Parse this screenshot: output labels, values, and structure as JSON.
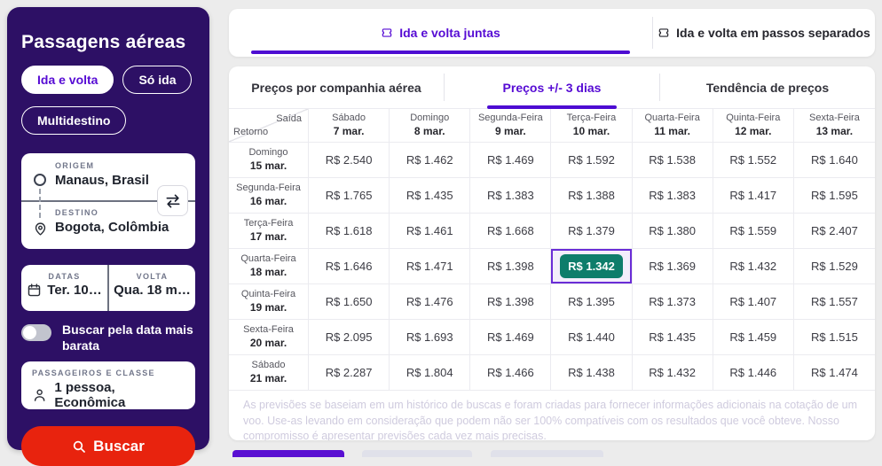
{
  "colors": {
    "accent_purple": "#560bd4",
    "sidebar_bg": "#2d1065",
    "search_button_red": "#e8230e",
    "best_price_green": "#0e7d6b",
    "highlight_border": "#6a2cd6"
  },
  "sidebar": {
    "title": "Passagens aéreas",
    "trip_types": [
      {
        "label": "Ida e volta",
        "active": true
      },
      {
        "label": "Só ida",
        "active": false
      },
      {
        "label": "Multidestino",
        "active": false
      }
    ],
    "origin": {
      "label": "ORIGEM",
      "value": "Manaus, Brasil"
    },
    "destination": {
      "label": "DESTINO",
      "value": "Bogota, Colômbia"
    },
    "dates": {
      "label": "DATAS",
      "value": "Ter. 10…"
    },
    "return": {
      "label": "VOLTA",
      "value": "Qua. 18 m…"
    },
    "cheapest_toggle_label": "Buscar pela data mais barata",
    "passengers": {
      "label": "PASSAGEIROS E CLASSE",
      "value": "1 pessoa, Econômica"
    },
    "search_button": "Buscar"
  },
  "main": {
    "mode_tabs": [
      {
        "label": "Ida e volta juntas",
        "active": true
      },
      {
        "label": "Ida e volta em passos separados",
        "active": false
      }
    ],
    "view_tabs": [
      {
        "label": "Preços por companhia aérea",
        "active": false
      },
      {
        "label": "Preços +/- 3 dias",
        "active": true
      },
      {
        "label": "Tendência de preços",
        "active": false
      }
    ],
    "disclaimer": "As previsões se baseiam em um histórico de buscas e foram criadas para fornecer informações adicionais na cotação de um voo. Use-as levando em consideração que podem não ser 100% compatíveis com os resultados que você obteve. Nosso compromisso é apresentar previsões cada vez mais precisas."
  },
  "price_matrix": {
    "corner": {
      "top": "Saída",
      "bottom": "Retorno"
    },
    "columns": [
      {
        "day": "Sábado",
        "date": "7 mar."
      },
      {
        "day": "Domingo",
        "date": "8 mar."
      },
      {
        "day": "Segunda-Feira",
        "date": "9 mar."
      },
      {
        "day": "Terça-Feira",
        "date": "10 mar."
      },
      {
        "day": "Quarta-Feira",
        "date": "11 mar."
      },
      {
        "day": "Quinta-Feira",
        "date": "12 mar."
      },
      {
        "day": "Sexta-Feira",
        "date": "13 mar."
      }
    ],
    "rows": [
      {
        "day": "Domingo",
        "date": "15 mar.",
        "prices": [
          "R$ 2.540",
          "R$ 1.462",
          "R$ 1.469",
          "R$ 1.592",
          "R$ 1.538",
          "R$ 1.552",
          "R$ 1.640"
        ]
      },
      {
        "day": "Segunda-Feira",
        "date": "16 mar.",
        "prices": [
          "R$ 1.765",
          "R$ 1.435",
          "R$ 1.383",
          "R$ 1.388",
          "R$ 1.383",
          "R$ 1.417",
          "R$ 1.595"
        ]
      },
      {
        "day": "Terça-Feira",
        "date": "17 mar.",
        "prices": [
          "R$ 1.618",
          "R$ 1.461",
          "R$ 1.668",
          "R$ 1.379",
          "R$ 1.380",
          "R$ 1.559",
          "R$ 2.407"
        ]
      },
      {
        "day": "Quarta-Feira",
        "date": "18 mar.",
        "prices": [
          "R$ 1.646",
          "R$ 1.471",
          "R$ 1.398",
          "R$ 1.342",
          "R$ 1.369",
          "R$ 1.432",
          "R$ 1.529"
        ]
      },
      {
        "day": "Quinta-Feira",
        "date": "19 mar.",
        "prices": [
          "R$ 1.650",
          "R$ 1.476",
          "R$ 1.398",
          "R$ 1.395",
          "R$ 1.373",
          "R$ 1.407",
          "R$ 1.557"
        ]
      },
      {
        "day": "Sexta-Feira",
        "date": "20 mar.",
        "prices": [
          "R$ 2.095",
          "R$ 1.693",
          "R$ 1.469",
          "R$ 1.440",
          "R$ 1.435",
          "R$ 1.459",
          "R$ 1.515"
        ]
      },
      {
        "day": "Sábado",
        "date": "21 mar.",
        "prices": [
          "R$ 2.287",
          "R$ 1.804",
          "R$ 1.466",
          "R$ 1.438",
          "R$ 1.432",
          "R$ 1.446",
          "R$ 1.474"
        ]
      }
    ],
    "highlight": {
      "row": 3,
      "col": 3,
      "value": "R$ 1.342"
    }
  }
}
